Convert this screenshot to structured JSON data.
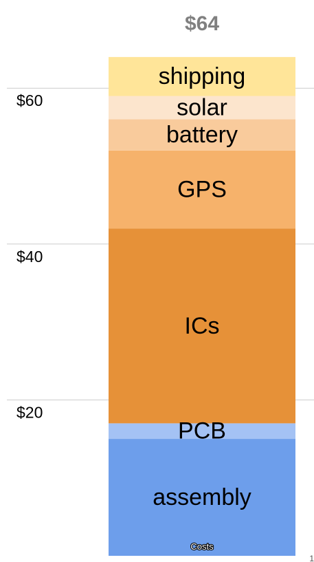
{
  "chart_data": {
    "type": "bar",
    "stacked": true,
    "categories": [
      "Costs"
    ],
    "total_label": "$64",
    "y_ticks": [
      {
        "value": 20,
        "label": "$20"
      },
      {
        "value": 40,
        "label": "$40"
      },
      {
        "value": 60,
        "label": "$60"
      }
    ],
    "ylim": [
      0,
      64
    ],
    "grid": true,
    "series": [
      {
        "name": "assembly",
        "values": [
          15
        ],
        "color": "#6d9eeb"
      },
      {
        "name": "PCB",
        "values": [
          2
        ],
        "color": "#a4c2f4"
      },
      {
        "name": "ICs",
        "values": [
          25
        ],
        "color": "#e69138"
      },
      {
        "name": "GPS",
        "values": [
          10
        ],
        "color": "#f6b26b"
      },
      {
        "name": "battery",
        "values": [
          4
        ],
        "color": "#f9cb9c"
      },
      {
        "name": "solar",
        "values": [
          3
        ],
        "color": "#fce5cd"
      },
      {
        "name": "shipping",
        "values": [
          5
        ],
        "color": "#ffe599"
      }
    ]
  },
  "page_number": "1"
}
